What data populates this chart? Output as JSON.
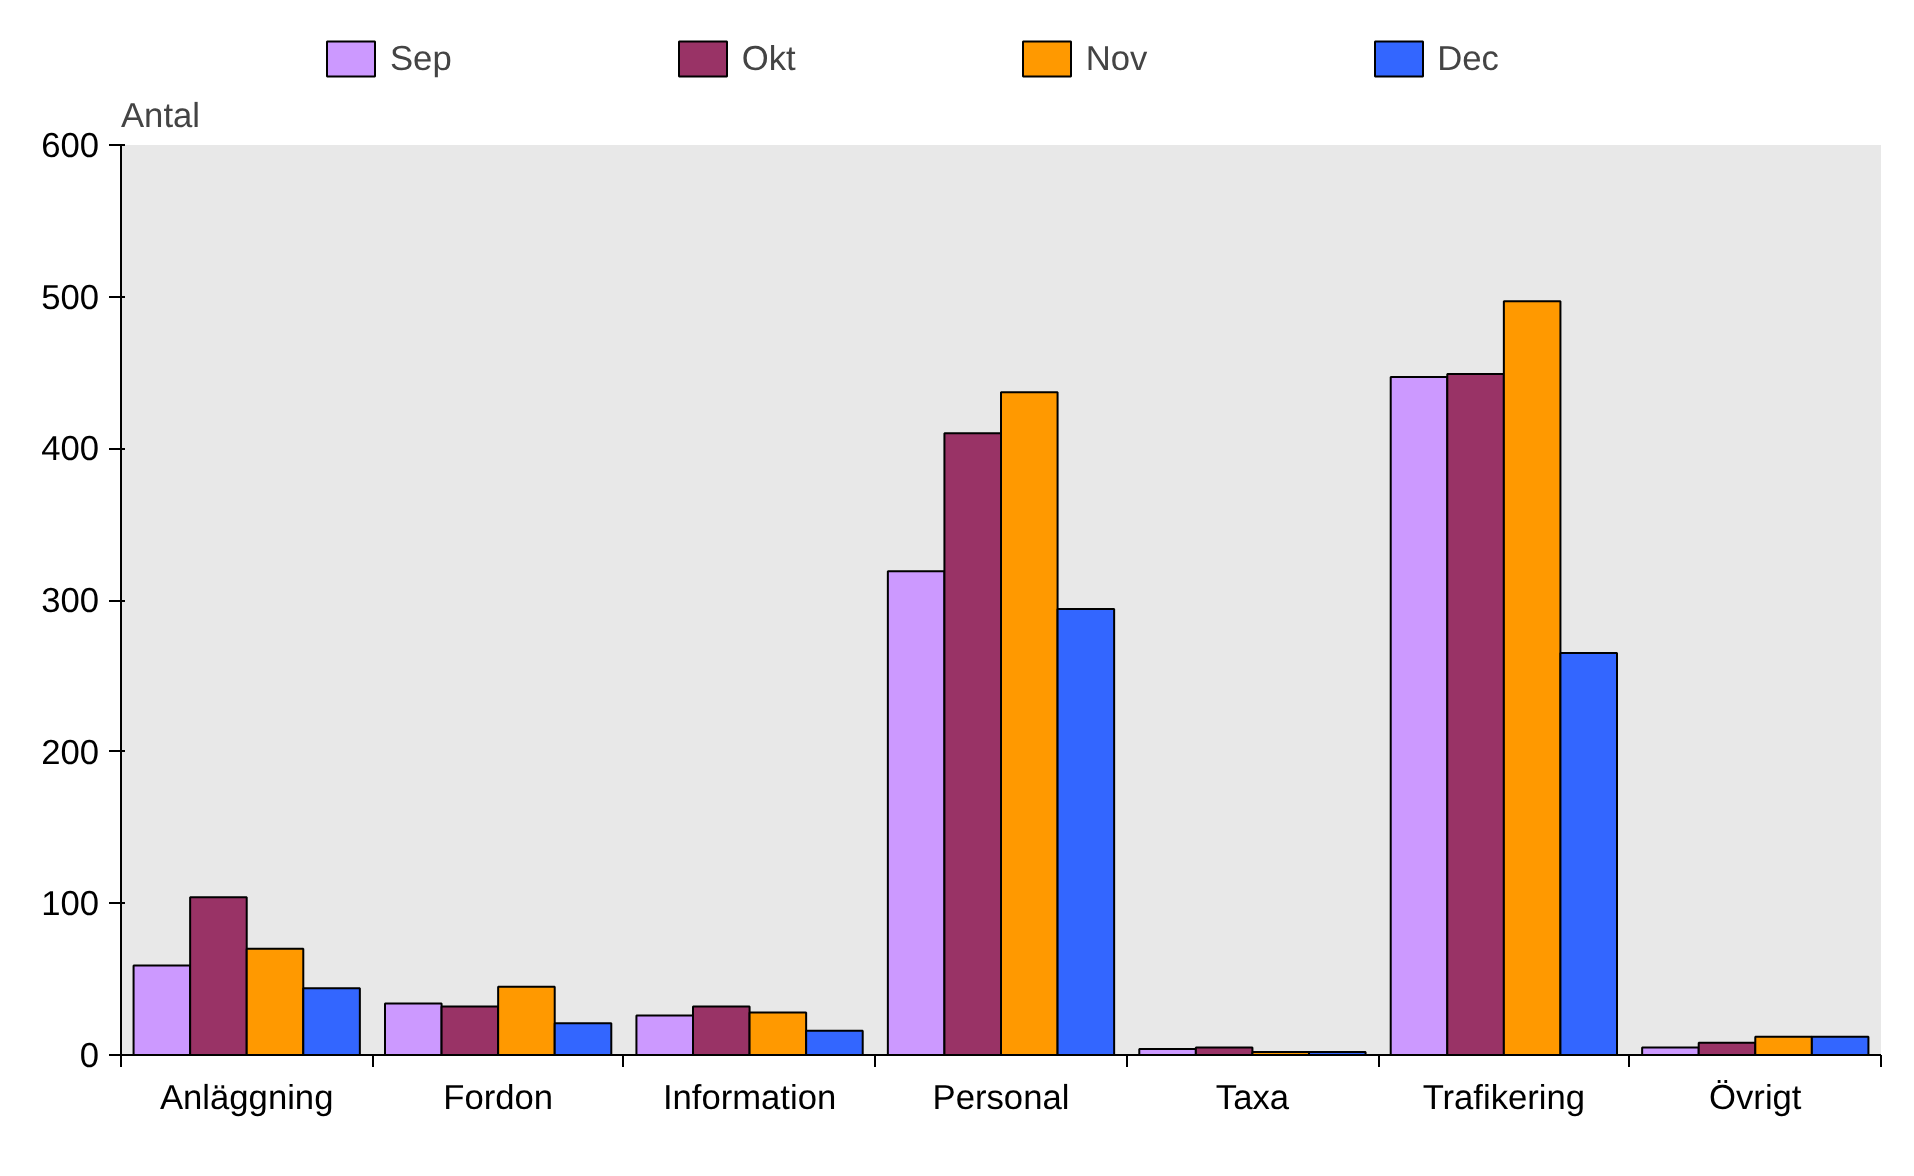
{
  "chart_data": {
    "type": "bar",
    "ylabel": "Antal",
    "categories": [
      "Anläggning",
      "Fordon",
      "Information",
      "Personal",
      "Taxa",
      "Trafikering",
      "Övrigt"
    ],
    "series": [
      {
        "name": "Sep",
        "color": "#cc99ff",
        "values": [
          59,
          34,
          26,
          319,
          4,
          447,
          5
        ]
      },
      {
        "name": "Okt",
        "color": "#993366",
        "values": [
          104,
          32,
          32,
          410,
          5,
          449,
          8
        ]
      },
      {
        "name": "Nov",
        "color": "#ff9900",
        "values": [
          70,
          45,
          28,
          437,
          2,
          497,
          12
        ]
      },
      {
        "name": "Dec",
        "color": "#3366ff",
        "values": [
          44,
          21,
          16,
          294,
          2,
          265,
          12
        ]
      }
    ],
    "ylim": [
      0,
      600
    ],
    "yticks": [
      0,
      100,
      200,
      300,
      400,
      500,
      600
    ],
    "legend": "top"
  }
}
